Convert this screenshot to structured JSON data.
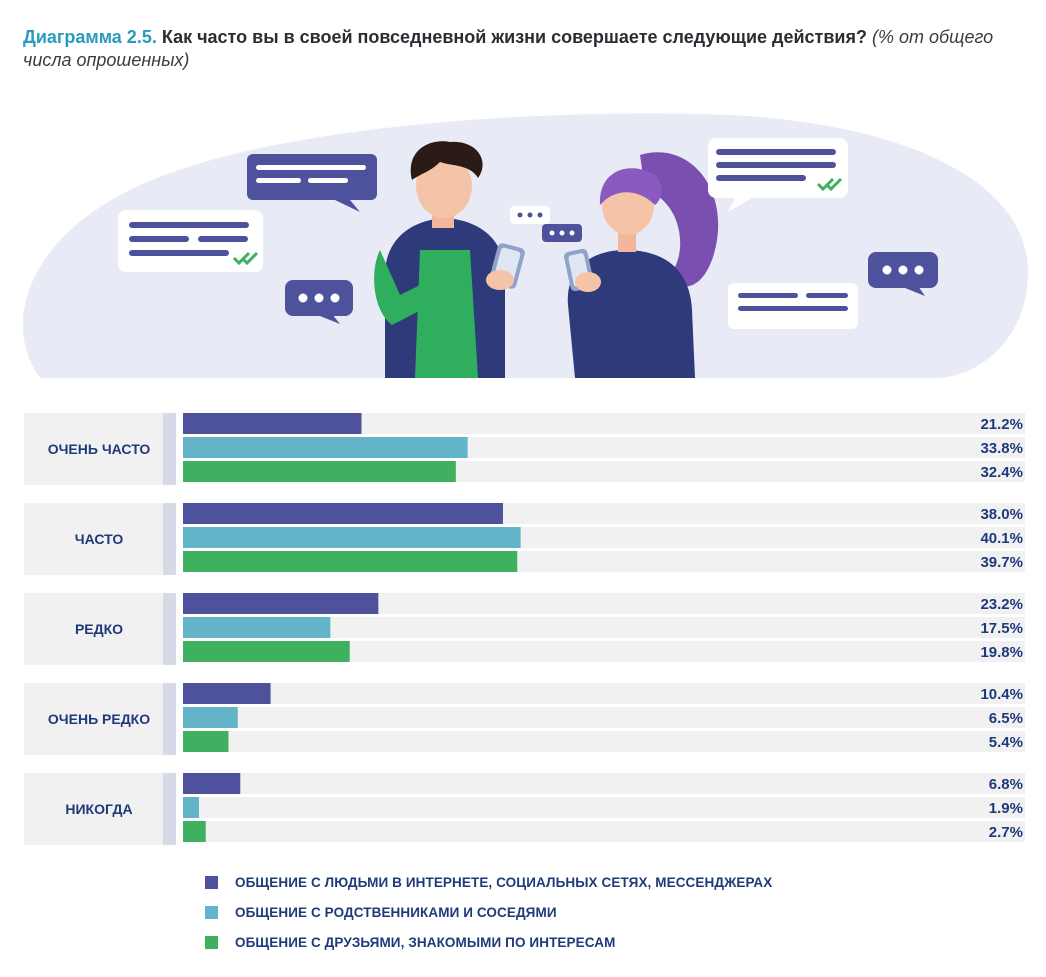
{
  "header": {
    "lead": "Диаграмма 2.5.",
    "question": "Как часто вы в своей повседневной жизни совершаете следующие действия?",
    "note": "(% от общего числа опрошенных)"
  },
  "illustration": {
    "description_icons": [
      "chat-bubble-icon",
      "checkmark-icon",
      "ellipsis-bubble-icon",
      "smartphone-icon"
    ]
  },
  "colors": {
    "series1": "#4e519b",
    "series2": "#63b4c8",
    "series3": "#3fb05f",
    "track": "#f1f1f2",
    "group_bg": "#f1f1f2",
    "group_bar": "#d6d9e6",
    "text": "#1f3a7a"
  },
  "chart_data": {
    "type": "bar",
    "orientation": "horizontal",
    "categories": [
      "ОЧЕНЬ ЧАСТО",
      "ЧАСТО",
      "РЕДКО",
      "ОЧЕНЬ РЕДКО",
      "НИКОГДА"
    ],
    "series": [
      {
        "name": "ОБЩЕНИЕ С ЛЮДЬМИ В ИНТЕРНЕТЕ, СОЦИАЛЬНЫХ СЕТЯХ, МЕССЕНДЖЕРАХ",
        "values": [
          21.2,
          38.0,
          23.2,
          10.4,
          6.8
        ],
        "labels": [
          "21.2%",
          "38.0%",
          "23.2%",
          "10.4%",
          "6.8%"
        ]
      },
      {
        "name": "ОБЩЕНИЕ С РОДСТВЕННИКАМИ И СОСЕДЯМИ",
        "values": [
          33.8,
          40.1,
          17.5,
          6.5,
          1.9
        ],
        "labels": [
          "33.8%",
          "40.1%",
          "17.5%",
          "6.5%",
          "1.9%"
        ]
      },
      {
        "name": "ОБЩЕНИЕ С ДРУЗЬЯМИ, ЗНАКОМЫМИ ПО ИНТЕРЕСАМ",
        "values": [
          32.4,
          39.7,
          19.8,
          5.4,
          2.7
        ],
        "labels": [
          "32.4%",
          "39.7%",
          "19.8%",
          "5.4%",
          "2.7%"
        ]
      }
    ],
    "xlim": [
      0,
      100
    ],
    "legend_position": "bottom"
  }
}
